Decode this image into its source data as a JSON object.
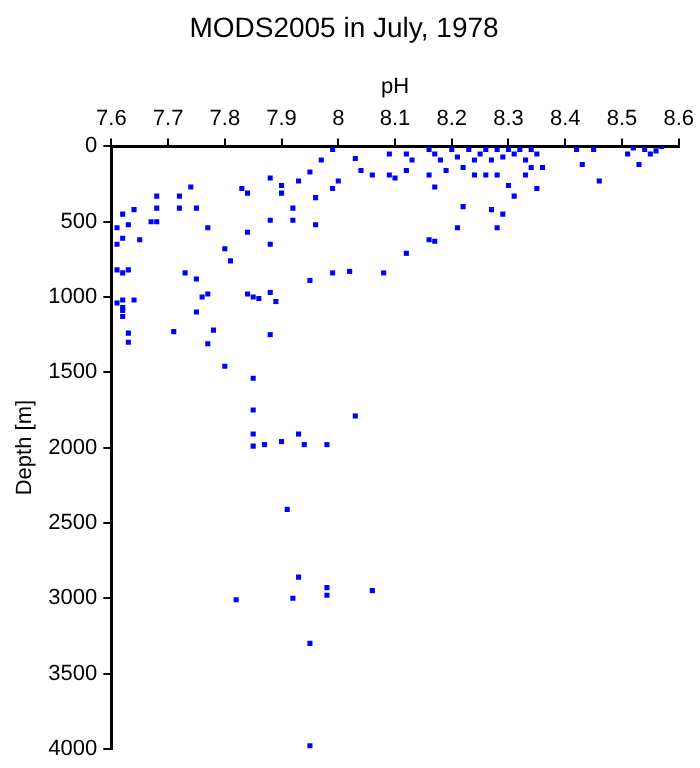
{
  "chart_data": {
    "type": "scatter",
    "title": "MODS2005 in July, 1978",
    "xlabel": "pH",
    "ylabel": "Depth [m]",
    "xlim": [
      7.6,
      8.6
    ],
    "xticks": [
      7.6,
      7.7,
      7.8,
      7.9,
      8,
      8.1,
      8.2,
      8.3,
      8.4,
      8.5,
      8.6
    ],
    "ylim": [
      4000,
      0
    ],
    "yticks": [
      0,
      500,
      1000,
      1500,
      2000,
      2500,
      3000,
      3500,
      4000
    ],
    "grid": false,
    "legend": false,
    "marker": "square",
    "series": [
      {
        "color": "#0000ff",
        "x": [
          7.99,
          7.97,
          7.95,
          7.93,
          7.9,
          7.88,
          7.9,
          7.96,
          7.99,
          8.0,
          8.03,
          8.04,
          8.06,
          8.09,
          8.09,
          8.1,
          8.12,
          8.12,
          8.13,
          8.16,
          8.17,
          8.16,
          8.17,
          8.18,
          8.19,
          8.2,
          8.21,
          8.22,
          8.23,
          8.24,
          8.25,
          8.26,
          8.27,
          8.28,
          8.29,
          8.3,
          8.31,
          8.32,
          8.33,
          8.34,
          8.35,
          8.26,
          8.28,
          8.24,
          8.3,
          8.31,
          8.33,
          8.34,
          8.35,
          8.36,
          8.42,
          8.45,
          8.43,
          8.46,
          8.51,
          8.52,
          8.53,
          8.54,
          8.55,
          8.56,
          8.57,
          8.22,
          8.27,
          8.29,
          8.21,
          8.28,
          8.16,
          8.17,
          8.12,
          8.08,
          8.02,
          7.99,
          7.95,
          7.96,
          7.92,
          7.92,
          7.88,
          7.88,
          7.84,
          7.83,
          7.84,
          7.8,
          7.81,
          7.77,
          7.75,
          7.74,
          7.72,
          7.72,
          7.68,
          7.68,
          7.67,
          7.68,
          7.64,
          7.62,
          7.63,
          7.61,
          7.61,
          7.62,
          7.65,
          7.61,
          7.62,
          7.63,
          7.73,
          7.75,
          7.76,
          7.77,
          7.84,
          7.85,
          7.88,
          7.89,
          7.86,
          7.75,
          7.62,
          7.64,
          7.62,
          7.61,
          7.62,
          7.62,
          7.63,
          7.63,
          7.71,
          7.78,
          7.77,
          7.8,
          7.85,
          7.85,
          7.88,
          7.85,
          7.85,
          7.87,
          7.9,
          7.93,
          7.94,
          7.98,
          8.03,
          7.91,
          7.82,
          7.92,
          7.93,
          7.98,
          7.98,
          8.06,
          7.95,
          7.95
        ],
        "values": [
          20,
          90,
          170,
          230,
          260,
          210,
          310,
          340,
          280,
          230,
          80,
          160,
          190,
          50,
          190,
          210,
          50,
          160,
          90,
          20,
          50,
          190,
          270,
          90,
          160,
          20,
          70,
          140,
          20,
          90,
          50,
          20,
          90,
          20,
          70,
          20,
          50,
          20,
          90,
          20,
          50,
          190,
          190,
          190,
          260,
          330,
          190,
          140,
          280,
          140,
          20,
          20,
          120,
          230,
          50,
          10,
          120,
          20,
          50,
          30,
          0,
          400,
          420,
          450,
          540,
          540,
          620,
          630,
          710,
          840,
          830,
          840,
          890,
          520,
          410,
          490,
          490,
          650,
          570,
          280,
          310,
          680,
          760,
          540,
          410,
          270,
          330,
          410,
          330,
          410,
          500,
          500,
          420,
          450,
          520,
          540,
          650,
          610,
          620,
          820,
          840,
          820,
          840,
          880,
          1000,
          980,
          980,
          1000,
          970,
          1030,
          1010,
          1100,
          1020,
          1020,
          1070,
          1040,
          1090,
          1130,
          1240,
          1300,
          1230,
          1220,
          1310,
          1460,
          1540,
          1750,
          1250,
          1910,
          1990,
          1980,
          1960,
          1910,
          1980,
          1980,
          1790,
          2410,
          3010,
          3000,
          2860,
          2930,
          2980,
          2950,
          3300,
          3980
        ]
      }
    ]
  }
}
